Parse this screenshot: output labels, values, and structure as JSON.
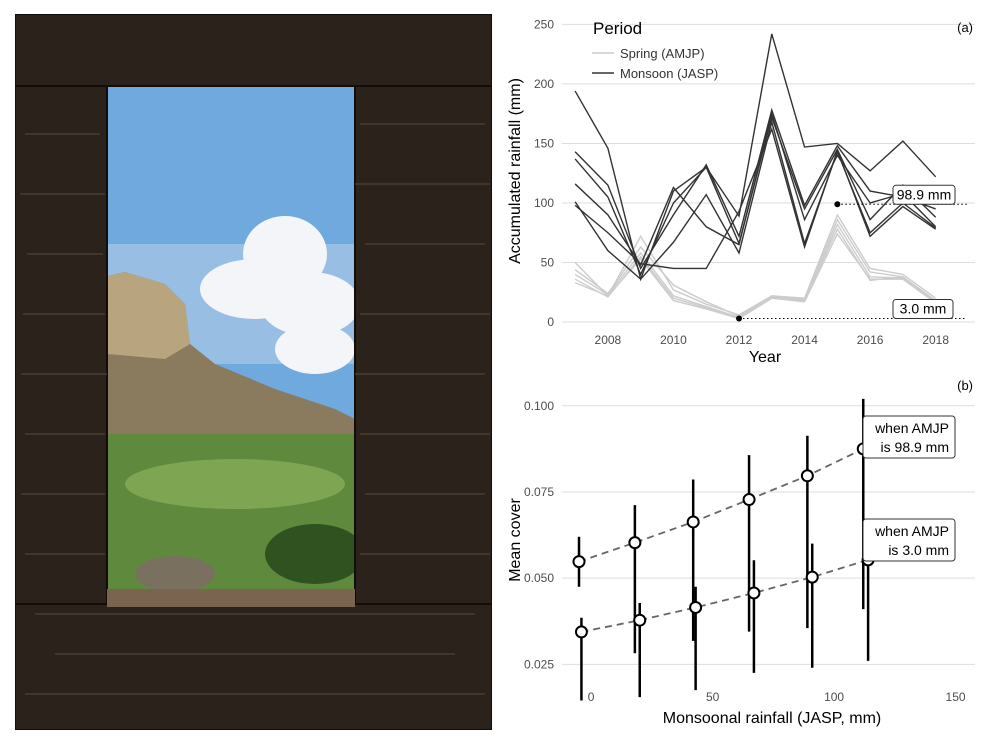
{
  "photo": {
    "subject": "view through a stone window of a cliff and green valley"
  },
  "colors": {
    "spring": "#cccccc",
    "monsoon": "#333333",
    "grid": "#dedede",
    "sky": "#7fb4e0"
  },
  "chart_data": [
    {
      "panel": "(a)",
      "type": "line",
      "xlabel": "Year",
      "ylabel": "Accumulated rainfall (mm)",
      "xlim": [
        2006.6,
        2019.2
      ],
      "ylim": [
        -5,
        252
      ],
      "xticks": [
        2008,
        2010,
        2012,
        2014,
        2016,
        2018
      ],
      "yticks": [
        0,
        50,
        100,
        150,
        200,
        250
      ],
      "grid": "horizontal",
      "legend": {
        "title": "Period",
        "position": "top-left",
        "entries": [
          {
            "label": "Spring (AMJP)",
            "period": "spring"
          },
          {
            "label": "Monsoon (JASP)",
            "period": "monsoon"
          }
        ]
      },
      "x": [
        2007,
        2008,
        2009,
        2010,
        2011,
        2012,
        2013,
        2014,
        2015,
        2016,
        2017,
        2018
      ],
      "series": [
        {
          "period": "spring",
          "values": [
            50,
            22,
            72,
            27,
            15,
            6,
            22,
            20,
            90,
            45,
            40,
            20
          ]
        },
        {
          "period": "spring",
          "values": [
            44,
            24,
            63,
            31,
            17,
            5,
            21,
            19,
            86,
            42,
            38,
            18
          ]
        },
        {
          "period": "spring",
          "values": [
            40,
            23,
            58,
            22,
            13,
            4,
            21,
            18,
            82,
            38,
            37,
            17
          ]
        },
        {
          "period": "spring",
          "values": [
            36,
            21,
            55,
            20,
            12,
            3,
            20,
            18,
            78,
            35,
            38,
            16
          ]
        },
        {
          "period": "spring",
          "values": [
            33,
            22,
            53,
            18,
            11,
            3,
            20,
            17,
            74,
            36,
            36,
            16
          ]
        },
        {
          "period": "monsoon",
          "values": [
            194,
            146,
            36,
            110,
            130,
            89,
            242,
            147,
            150,
            127,
            152,
            122
          ]
        },
        {
          "period": "monsoon",
          "values": [
            143,
            115,
            45,
            90,
            132,
            72,
            178,
            98,
            148,
            110,
            105,
            95
          ]
        },
        {
          "period": "monsoon",
          "values": [
            137,
            105,
            40,
            100,
            130,
            66,
            172,
            95,
            145,
            86,
            115,
            88
          ]
        },
        {
          "period": "monsoon",
          "values": [
            116,
            90,
            48,
            113,
            80,
            65,
            175,
            86,
            140,
            100,
            108,
            80
          ]
        },
        {
          "period": "monsoon",
          "values": [
            101,
            60,
            36,
            67,
            107,
            58,
            168,
            66,
            143,
            75,
            100,
            79
          ]
        },
        {
          "period": "monsoon",
          "values": [
            98,
            75,
            49,
            45,
            45,
            93,
            162,
            63,
            144,
            72,
            97,
            78
          ]
        }
      ],
      "annotations": [
        {
          "label": "98.9 mm",
          "point": [
            2015,
            98.9
          ]
        },
        {
          "label": "3.0 mm",
          "point": [
            2012,
            3.0
          ]
        }
      ]
    },
    {
      "panel": "(b)",
      "type": "scatter",
      "xlabel": "Monsoonal rainfall (JASP, mm)",
      "ylabel": "Mean cover",
      "xlim": [
        -12,
        158
      ],
      "ylim": [
        0.019,
        0.104
      ],
      "xticks": [
        0,
        50,
        100,
        150
      ],
      "yticks": [
        0.025,
        0.05,
        0.075,
        0.1
      ],
      "ytick_labels": [
        "0.025",
        "0.050",
        "0.075",
        "0.100"
      ],
      "grid": "horizontal",
      "series": [
        {
          "label_lines": [
            "when AMJP",
            "is 98.9 mm"
          ],
          "points": [
            {
              "x": -5,
              "y": 0.0548,
              "lo": 0.0475,
              "hi": 0.062
            },
            {
              "x": 18,
              "y": 0.0603,
              "lo": 0.0282,
              "hi": 0.0712
            },
            {
              "x": 42,
              "y": 0.0663,
              "lo": 0.0318,
              "hi": 0.0786
            },
            {
              "x": 65,
              "y": 0.0728,
              "lo": 0.0345,
              "hi": 0.0857
            },
            {
              "x": 89,
              "y": 0.0797,
              "lo": 0.0355,
              "hi": 0.0913
            },
            {
              "x": 112,
              "y": 0.0875,
              "lo": 0.041,
              "hi": 0.102
            }
          ]
        },
        {
          "label_lines": [
            "when AMJP",
            "is  3.0 mm"
          ],
          "points": [
            {
              "x": -4,
              "y": 0.0344,
              "lo": 0.0145,
              "hi": 0.0385
            },
            {
              "x": 20,
              "y": 0.0378,
              "lo": 0.0155,
              "hi": 0.0428
            },
            {
              "x": 43,
              "y": 0.0415,
              "lo": 0.0175,
              "hi": 0.0475
            },
            {
              "x": 67,
              "y": 0.0457,
              "lo": 0.0225,
              "hi": 0.0552
            },
            {
              "x": 91,
              "y": 0.0503,
              "lo": 0.024,
              "hi": 0.06
            },
            {
              "x": 114,
              "y": 0.0553,
              "lo": 0.026,
              "hi": 0.066
            }
          ]
        }
      ]
    }
  ]
}
